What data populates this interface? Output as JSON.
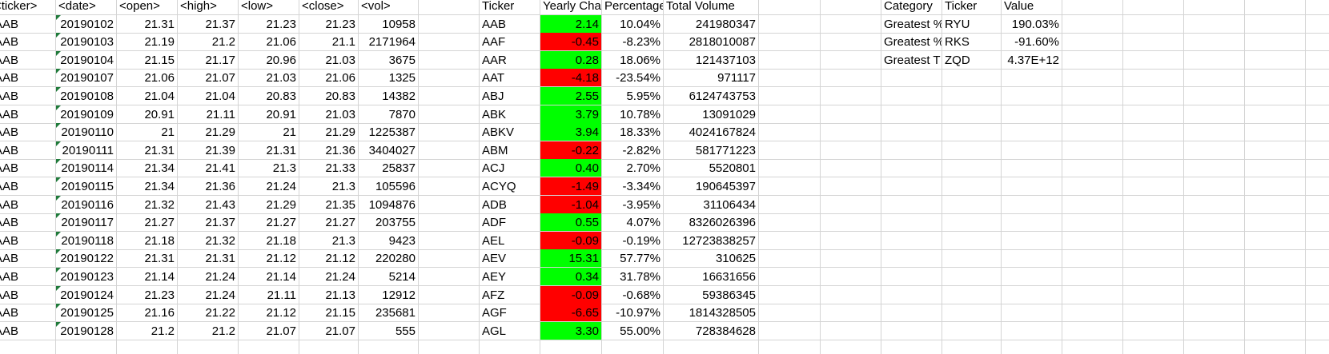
{
  "sheet": {
    "stock_headers": [
      "<ticker>",
      "<date>",
      "<open>",
      "<high>",
      "<low>",
      "<close>",
      "<vol>"
    ],
    "stock_rows": [
      [
        "AAB",
        "20190102",
        "21.31",
        "21.37",
        "21.23",
        "21.23",
        "10958"
      ],
      [
        "AAB",
        "20190103",
        "21.19",
        "21.2",
        "21.06",
        "21.1",
        "2171964"
      ],
      [
        "AAB",
        "20190104",
        "21.15",
        "21.17",
        "20.96",
        "21.03",
        "3675"
      ],
      [
        "AAB",
        "20190107",
        "21.06",
        "21.07",
        "21.03",
        "21.06",
        "1325"
      ],
      [
        "AAB",
        "20190108",
        "21.04",
        "21.04",
        "20.83",
        "20.83",
        "14382"
      ],
      [
        "AAB",
        "20190109",
        "20.91",
        "21.11",
        "20.91",
        "21.03",
        "7870"
      ],
      [
        "AAB",
        "20190110",
        "21",
        "21.29",
        "21",
        "21.29",
        "1225387"
      ],
      [
        "AAB",
        "20190111",
        "21.31",
        "21.39",
        "21.31",
        "21.36",
        "3404027"
      ],
      [
        "AAB",
        "20190114",
        "21.34",
        "21.41",
        "21.3",
        "21.33",
        "25837"
      ],
      [
        "AAB",
        "20190115",
        "21.34",
        "21.36",
        "21.24",
        "21.3",
        "105596"
      ],
      [
        "AAB",
        "20190116",
        "21.32",
        "21.43",
        "21.29",
        "21.35",
        "1094876"
      ],
      [
        "AAB",
        "20190117",
        "21.27",
        "21.37",
        "21.27",
        "21.27",
        "203755"
      ],
      [
        "AAB",
        "20190118",
        "21.18",
        "21.32",
        "21.18",
        "21.3",
        "9423"
      ],
      [
        "AAB",
        "20190122",
        "21.31",
        "21.31",
        "21.12",
        "21.12",
        "220280"
      ],
      [
        "AAB",
        "20190123",
        "21.14",
        "21.24",
        "21.14",
        "21.24",
        "5214"
      ],
      [
        "AAB",
        "20190124",
        "21.23",
        "21.24",
        "21.11",
        "21.13",
        "12912"
      ],
      [
        "AAB",
        "20190125",
        "21.16",
        "21.22",
        "21.12",
        "21.15",
        "235681"
      ],
      [
        "AAB",
        "20190128",
        "21.2",
        "21.2",
        "21.07",
        "21.07",
        "555"
      ]
    ],
    "summary_headers": [
      "Ticker",
      "Yearly Cha",
      "Percentage",
      "Total Volume"
    ],
    "summary_rows": [
      {
        "ticker": "AAB",
        "yearly_change": "2.14",
        "percent": "10.04%",
        "volume": "241980347",
        "status": "positive"
      },
      {
        "ticker": "AAF",
        "yearly_change": "-0.45",
        "percent": "-8.23%",
        "volume": "2818010087",
        "status": "negative"
      },
      {
        "ticker": "AAR",
        "yearly_change": "0.28",
        "percent": "18.06%",
        "volume": "121437103",
        "status": "positive"
      },
      {
        "ticker": "AAT",
        "yearly_change": "-4.18",
        "percent": "-23.54%",
        "volume": "971117",
        "status": "negative"
      },
      {
        "ticker": "ABJ",
        "yearly_change": "2.55",
        "percent": "5.95%",
        "volume": "6124743753",
        "status": "positive"
      },
      {
        "ticker": "ABK",
        "yearly_change": "3.79",
        "percent": "10.78%",
        "volume": "13091029",
        "status": "positive"
      },
      {
        "ticker": "ABKV",
        "yearly_change": "3.94",
        "percent": "18.33%",
        "volume": "4024167824",
        "status": "positive"
      },
      {
        "ticker": "ABM",
        "yearly_change": "-0.22",
        "percent": "-2.82%",
        "volume": "581771223",
        "status": "negative"
      },
      {
        "ticker": "ACJ",
        "yearly_change": "0.40",
        "percent": "2.70%",
        "volume": "5520801",
        "status": "positive"
      },
      {
        "ticker": "ACYQ",
        "yearly_change": "-1.49",
        "percent": "-3.34%",
        "volume": "190645397",
        "status": "negative"
      },
      {
        "ticker": "ADB",
        "yearly_change": "-1.04",
        "percent": "-3.95%",
        "volume": "31106434",
        "status": "negative"
      },
      {
        "ticker": "ADF",
        "yearly_change": "0.55",
        "percent": "4.07%",
        "volume": "8326026396",
        "status": "positive"
      },
      {
        "ticker": "AEL",
        "yearly_change": "-0.09",
        "percent": "-0.19%",
        "volume": "12723838257",
        "status": "negative"
      },
      {
        "ticker": "AEV",
        "yearly_change": "15.31",
        "percent": "57.77%",
        "volume": "310625",
        "status": "positive"
      },
      {
        "ticker": "AEY",
        "yearly_change": "0.34",
        "percent": "31.78%",
        "volume": "16631656",
        "status": "positive"
      },
      {
        "ticker": "AFZ",
        "yearly_change": "-0.09",
        "percent": "-0.68%",
        "volume": "59386345",
        "status": "negative"
      },
      {
        "ticker": "AGF",
        "yearly_change": "-6.65",
        "percent": "-10.97%",
        "volume": "1814328505",
        "status": "negative"
      },
      {
        "ticker": "AGL",
        "yearly_change": "3.30",
        "percent": "55.00%",
        "volume": "728384628",
        "status": "positive"
      }
    ],
    "greatest_headers": [
      "Category",
      "Ticker",
      "Value"
    ],
    "greatest_rows": [
      [
        "Greatest %",
        "RYU",
        "190.03%"
      ],
      [
        "Greatest %",
        "RKS",
        "-91.60%"
      ],
      [
        "Greatest T",
        "ZQD",
        "4.37E+12"
      ]
    ],
    "colors": {
      "positive": "#00ff00",
      "negative": "#ff0000",
      "gridline": "#d4d4d4",
      "error_marker": "#1f7a3a"
    }
  }
}
